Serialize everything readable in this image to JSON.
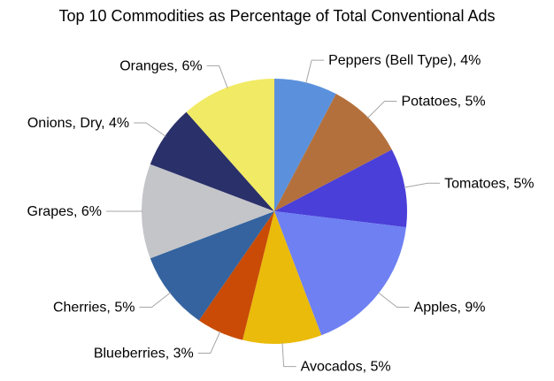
{
  "page": {
    "background": "#ffffff",
    "text_color": "#000000"
  },
  "chart_data": {
    "type": "pie",
    "title": "Top 10 Commodities as Percentage of Total Conventional Ads",
    "legend": "none",
    "label_style": "outside-leader-lines",
    "label_format": "{label}, {value}%",
    "leader_line_color": "#a6a6a6",
    "text_color": "#000000",
    "start_angle_deg": 0,
    "direction": "clockwise",
    "slices": [
      {
        "label": "Peppers (Bell Type)",
        "value": 4,
        "color": "#5B91DC"
      },
      {
        "label": "Potatoes",
        "value": 5,
        "color": "#B4703C"
      },
      {
        "label": "Tomatoes",
        "value": 5,
        "color": "#4A3FD8"
      },
      {
        "label": "Apples",
        "value": 9,
        "color": "#6E80F2"
      },
      {
        "label": "Avocados",
        "value": 5,
        "color": "#EABB0A"
      },
      {
        "label": "Blueberries",
        "value": 3,
        "color": "#C94B05"
      },
      {
        "label": "Cherries",
        "value": 5,
        "color": "#34639F"
      },
      {
        "label": "Grapes",
        "value": 6,
        "color": "#C4C5C9"
      },
      {
        "label": "Onions, Dry",
        "value": 4,
        "color": "#2A3069"
      },
      {
        "label": "Oranges",
        "value": 6,
        "color": "#F1EA64"
      }
    ]
  }
}
